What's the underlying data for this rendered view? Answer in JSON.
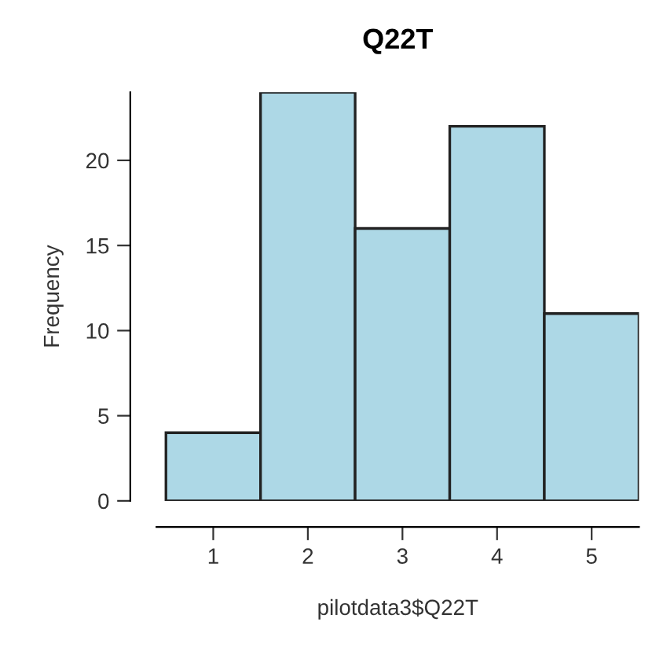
{
  "chart_data": {
    "type": "histogram",
    "title": "Q22T",
    "xlabel": "pilotdata3$Q22T",
    "ylabel": "Frequency",
    "bins": [
      0.5,
      1.5,
      2.5,
      3.5,
      4.5,
      5.5
    ],
    "values": [
      4,
      24,
      16,
      22,
      11
    ],
    "color": "#add8e6",
    "xlim": [
      0.4,
      5.5
    ],
    "ylim": [
      0,
      24
    ],
    "xticks": [
      1,
      2,
      3,
      4,
      5
    ],
    "yticks": [
      0,
      5,
      10,
      15,
      20
    ],
    "grid": false
  }
}
